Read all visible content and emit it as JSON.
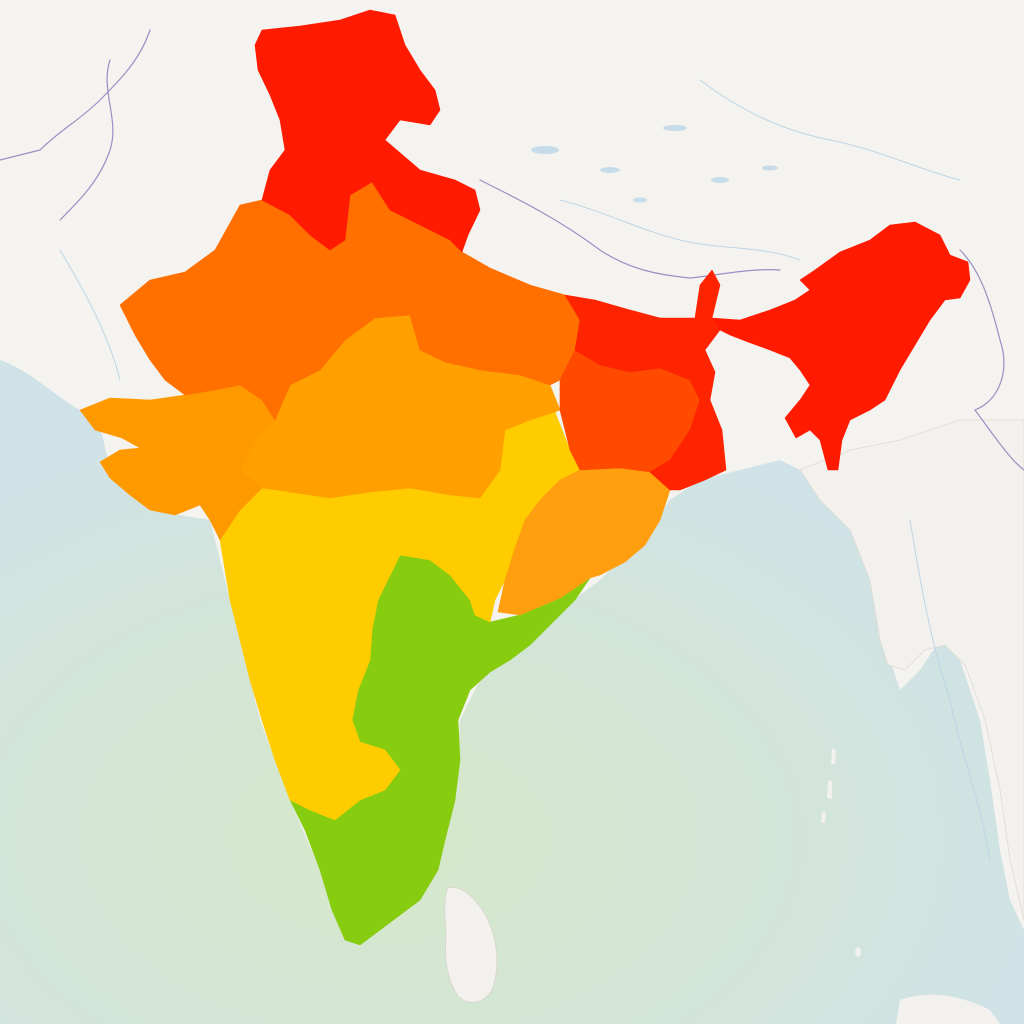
{
  "map": {
    "colors": {
      "land_background": "#f5f3ef",
      "ocean": "#cfe2e8",
      "ocean_glow": "#d6e8c8",
      "international_border": "#9a8fc4",
      "river": "#bcd6e6",
      "lake": "#c6dcea",
      "neighbor_land": "#f3f1ed"
    },
    "regions": [
      {
        "id": "north",
        "color": "#ff1a00"
      },
      {
        "id": "northeast",
        "color": "#ff1a00"
      },
      {
        "id": "east",
        "color": "#ff2400"
      },
      {
        "id": "east-central",
        "color": "#ff4a00"
      },
      {
        "id": "northwest",
        "color": "#ff7000"
      },
      {
        "id": "west-central",
        "color": "#ff9900"
      },
      {
        "id": "central",
        "color": "#ff9f00"
      },
      {
        "id": "deccan",
        "color": "#ffcc00"
      },
      {
        "id": "east-coast",
        "color": "#ff9f10"
      },
      {
        "id": "south",
        "color": "#88cc10"
      }
    ]
  }
}
